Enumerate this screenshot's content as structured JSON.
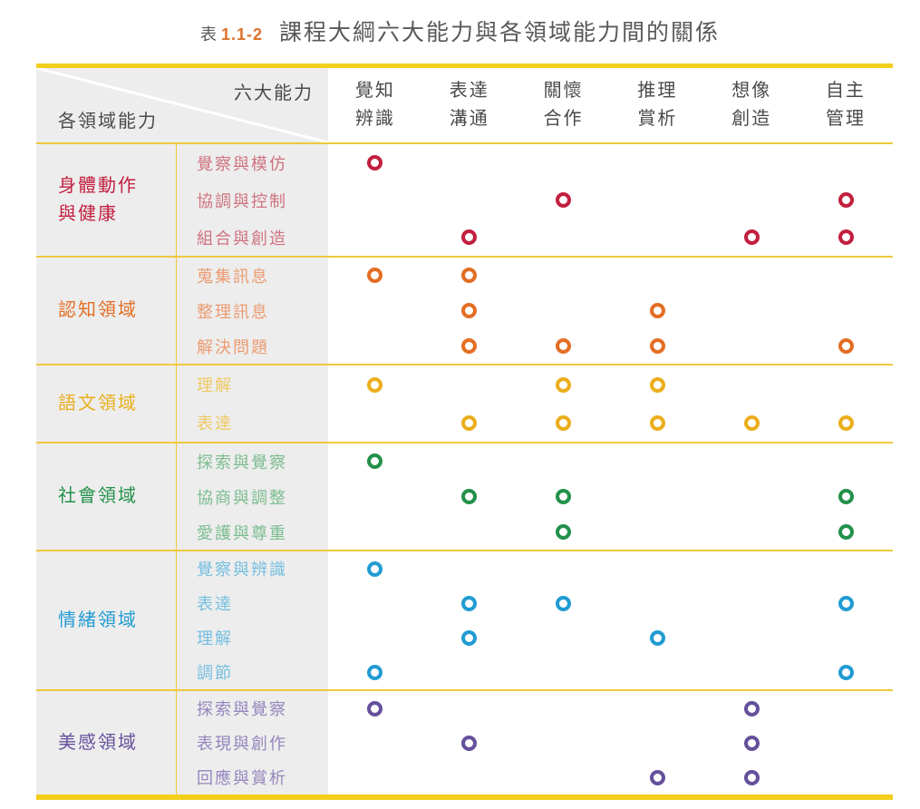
{
  "caption": {
    "label": "表",
    "number": "1.1-2",
    "title": "課程大綱六大能力與各領域能力間的關係"
  },
  "header": {
    "corner_top": "六大能力",
    "corner_bottom": "各領域能力",
    "columns": [
      [
        "覺知",
        "辨識"
      ],
      [
        "表達",
        "溝通"
      ],
      [
        "關懷",
        "合作"
      ],
      [
        "推理",
        "賞析"
      ],
      [
        "想像",
        "創造"
      ],
      [
        "自主",
        "管理"
      ]
    ]
  },
  "groups": [
    {
      "domain": "身體動作\n與健康",
      "color": "#C21F3F",
      "light_color": "#CF7380",
      "subs": [
        {
          "label": "覺察與模仿",
          "cols": [
            1
          ]
        },
        {
          "label": "協調與控制",
          "cols": [
            3,
            6
          ]
        },
        {
          "label": "組合與創造",
          "cols": [
            2,
            5,
            6
          ]
        }
      ]
    },
    {
      "domain": "認知領域",
      "color": "#E36E24",
      "light_color": "#EC9C72",
      "subs": [
        {
          "label": "蒐集訊息",
          "cols": [
            1,
            2
          ]
        },
        {
          "label": "整理訊息",
          "cols": [
            2,
            4
          ]
        },
        {
          "label": "解決問題",
          "cols": [
            2,
            3,
            4,
            6
          ]
        }
      ]
    },
    {
      "domain": "語文領域",
      "color": "#EBAE1C",
      "light_color": "#EFC963",
      "subs": [
        {
          "label": "理解",
          "cols": [
            1,
            3,
            4
          ]
        },
        {
          "label": "表達",
          "cols": [
            2,
            3,
            4,
            5,
            6
          ]
        }
      ]
    },
    {
      "domain": "社會領域",
      "color": "#23914B",
      "light_color": "#7CBD90",
      "subs": [
        {
          "label": "探索與覺察",
          "cols": [
            1
          ]
        },
        {
          "label": "協商與調整",
          "cols": [
            2,
            3,
            6
          ]
        },
        {
          "label": "愛護與尊重",
          "cols": [
            3,
            6
          ]
        }
      ]
    },
    {
      "domain": "情緒領域",
      "color": "#219CD3",
      "light_color": "#74BFE0",
      "subs": [
        {
          "label": "覺察與辨識",
          "cols": [
            1
          ]
        },
        {
          "label": "表達",
          "cols": [
            2,
            3,
            6
          ]
        },
        {
          "label": "理解",
          "cols": [
            2,
            4
          ]
        },
        {
          "label": "調節",
          "cols": [
            1,
            6
          ]
        }
      ]
    },
    {
      "domain": "美感領域",
      "color": "#65509B",
      "light_color": "#9486BD",
      "subs": [
        {
          "label": "探索與覺察",
          "cols": [
            1,
            5
          ]
        },
        {
          "label": "表現與創作",
          "cols": [
            2,
            5
          ]
        },
        {
          "label": "回應與賞析",
          "cols": [
            4,
            5
          ]
        }
      ]
    }
  ],
  "style": {
    "bar_color": "#F2CF1D",
    "thin_line_color": "#EFC93D",
    "cell_bg": "#EDEDED",
    "header_text_color": "#4A4A4A",
    "caption_text_color": "#595959",
    "caption_number_color": "#D9732C",
    "marker_shape": "open-circle"
  }
}
